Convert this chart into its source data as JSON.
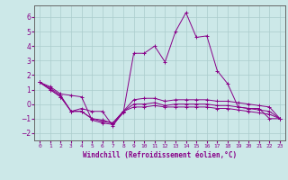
{
  "xlabel": "Windchill (Refroidissement éolien,°C)",
  "background_color": "#cce8e8",
  "grid_color": "#aacccc",
  "line_color": "#880088",
  "x_ticks": [
    0,
    1,
    2,
    3,
    4,
    5,
    6,
    7,
    8,
    9,
    10,
    11,
    12,
    13,
    14,
    15,
    16,
    17,
    18,
    19,
    20,
    21,
    22,
    23
  ],
  "ylim": [
    -2.5,
    6.8
  ],
  "xlim": [
    -0.5,
    23.5
  ],
  "series": [
    [
      1.5,
      1.2,
      0.7,
      0.6,
      0.5,
      -1.1,
      -1.3,
      -1.4,
      -0.6,
      3.5,
      3.5,
      4.0,
      2.9,
      5.0,
      6.3,
      4.6,
      4.7,
      2.3,
      1.4,
      -0.2,
      -0.3,
      -0.3,
      -1.0,
      -1.0
    ],
    [
      1.5,
      1.1,
      0.6,
      -0.5,
      -0.3,
      -0.5,
      -0.5,
      -1.5,
      -0.5,
      0.3,
      0.4,
      0.4,
      0.2,
      0.3,
      0.3,
      0.3,
      0.3,
      0.2,
      0.2,
      0.1,
      0.0,
      -0.1,
      -0.2,
      -1.0
    ],
    [
      1.5,
      1.0,
      0.5,
      -0.5,
      -0.5,
      -1.0,
      -1.1,
      -1.3,
      -0.5,
      0.0,
      0.0,
      0.1,
      -0.1,
      0.0,
      0.0,
      0.0,
      0.0,
      -0.1,
      -0.1,
      -0.2,
      -0.3,
      -0.4,
      -0.5,
      -1.0
    ],
    [
      1.5,
      1.0,
      0.5,
      -0.5,
      -0.5,
      -1.0,
      -1.2,
      -1.3,
      -0.5,
      -0.2,
      -0.2,
      -0.1,
      -0.2,
      -0.2,
      -0.2,
      -0.2,
      -0.2,
      -0.3,
      -0.3,
      -0.4,
      -0.5,
      -0.6,
      -0.7,
      -1.0
    ]
  ]
}
